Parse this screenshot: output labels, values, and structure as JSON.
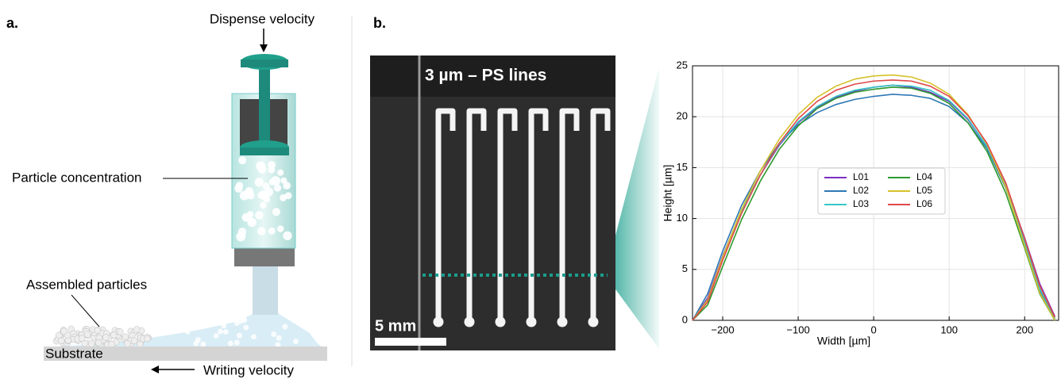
{
  "panels": {
    "a": {
      "label": "a.",
      "dispense": "Dispense velocity",
      "concentration": "Particle concentration",
      "assembled": "Assembled particles",
      "substrate": "Substrate",
      "writing": "Writing velocity"
    },
    "b": {
      "label": "b.",
      "photo_title": "3 µm – PS lines",
      "scale_bar": "5 mm"
    }
  },
  "chart_data": {
    "type": "line",
    "x_label": "Width [µm]",
    "y_label": "Height [µm]",
    "x": [
      -240,
      -220,
      -200,
      -175,
      -150,
      -125,
      -100,
      -75,
      -50,
      -25,
      0,
      25,
      50,
      75,
      100,
      125,
      150,
      175,
      200,
      220,
      240
    ],
    "series": [
      {
        "name": "L01",
        "color": "#7a2fc0",
        "values": [
          0,
          2.2,
          6.3,
          10.8,
          14.3,
          17.2,
          19.4,
          20.9,
          21.9,
          22.5,
          22.9,
          23.1,
          22.9,
          22.4,
          21.5,
          19.7,
          17.1,
          13.3,
          8.1,
          3.6,
          0.4
        ]
      },
      {
        "name": "L02",
        "color": "#2f78b4",
        "values": [
          0,
          2.6,
          6.8,
          11.3,
          14.7,
          17.4,
          19.2,
          20.4,
          21.2,
          21.7,
          22,
          22.2,
          22.1,
          21.8,
          21,
          19.4,
          16.9,
          13,
          7.6,
          2.9,
          0.1
        ]
      },
      {
        "name": "L03",
        "color": "#36c6c6",
        "values": [
          0,
          2.0,
          6.1,
          10.7,
          14.3,
          17.3,
          19.5,
          21.0,
          22.0,
          22.6,
          22.9,
          23.1,
          23.0,
          22.6,
          21.6,
          19.8,
          17.1,
          13.2,
          7.7,
          3.1,
          0.2
        ]
      },
      {
        "name": "L04",
        "color": "#2e9a2e",
        "values": [
          0,
          1.5,
          5.3,
          9.9,
          13.7,
          16.8,
          19.1,
          20.8,
          21.8,
          22.4,
          22.7,
          22.9,
          22.8,
          22.3,
          21.3,
          19.4,
          16.6,
          12.5,
          7.1,
          2.6,
          0
        ]
      },
      {
        "name": "L05",
        "color": "#d6c12a",
        "values": [
          0,
          2.0,
          6.2,
          10.9,
          14.7,
          17.8,
          20.2,
          21.9,
          23.0,
          23.7,
          24.0,
          24.1,
          23.9,
          23.3,
          22.2,
          20.2,
          17.3,
          13.1,
          7.3,
          2.7,
          0
        ]
      },
      {
        "name": "L06",
        "color": "#e04848",
        "values": [
          0,
          1.8,
          5.9,
          10.5,
          14.3,
          17.4,
          19.8,
          21.5,
          22.6,
          23.2,
          23.5,
          23.6,
          23.5,
          23.0,
          22.0,
          20.1,
          17.4,
          13.5,
          8.0,
          3.4,
          0.3
        ]
      }
    ],
    "xlim": [
      -240,
      245
    ],
    "ylim": [
      0,
      25
    ],
    "xticks": [
      {
        "value": -200,
        "label": "−200"
      },
      {
        "value": -100,
        "label": "−100"
      },
      0,
      100,
      200
    ],
    "yticks": [
      0,
      5,
      10,
      15,
      20,
      25
    ],
    "grid": true,
    "legend": "center"
  }
}
